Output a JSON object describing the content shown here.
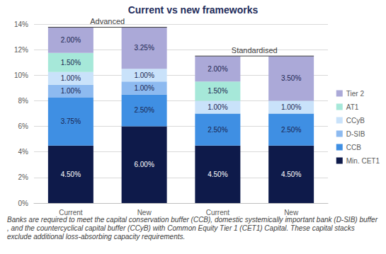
{
  "chart_data": {
    "type": "bar",
    "title": "Current vs new frameworks",
    "categories": [
      "Current",
      "New",
      "Current",
      "New"
    ],
    "groups": [
      {
        "label": "Advanced",
        "span": 2
      },
      {
        "label": "Standardised",
        "span": 2
      }
    ],
    "stacked": true,
    "data_labels": true,
    "grid": true,
    "legend": "right",
    "ylim": [
      0,
      14
    ],
    "yticks": [
      {
        "value": 0,
        "label": "0%"
      },
      {
        "value": 2,
        "label": "2%"
      },
      {
        "value": 4,
        "label": "4%"
      },
      {
        "value": 6,
        "label": "6%"
      },
      {
        "value": 8,
        "label": "8%"
      },
      {
        "value": 10,
        "label": "10%"
      },
      {
        "value": 12,
        "label": "12%"
      },
      {
        "value": 14,
        "label": "14%"
      }
    ],
    "series": [
      {
        "name": "Min. CET1",
        "color": "#0e1a4a",
        "values": [
          4.5,
          6,
          4.5,
          4.5
        ],
        "value_labels": [
          "4.50%",
          "6.00%",
          "4.50%",
          "4.50%"
        ]
      },
      {
        "name": "CCB",
        "color": "#3f8fe3",
        "values": [
          3.75,
          2.5,
          2.5,
          2.5
        ],
        "value_labels": [
          "3.75%",
          "2.50%",
          "2.50%",
          "2.50%"
        ]
      },
      {
        "name": "D-SIB",
        "color": "#8dbaf0",
        "values": [
          1,
          1,
          null,
          null
        ],
        "value_labels": [
          "1.00%",
          "1.00%",
          null,
          null
        ]
      },
      {
        "name": "CCyB",
        "color": "#c9e2fa",
        "values": [
          1,
          1,
          1,
          1
        ],
        "value_labels": [
          "1.00%",
          "1.00%",
          "1.00%",
          "1.00%"
        ]
      },
      {
        "name": "AT1",
        "color": "#a6e8d9",
        "values": [
          1.5,
          null,
          1.5,
          null
        ],
        "value_labels": [
          "1.50%",
          null,
          "1.50%",
          null
        ]
      },
      {
        "name": "Tier 2",
        "color": "#aba9d8",
        "values": [
          2,
          3.25,
          2,
          3.5
        ],
        "value_labels": [
          "2.00%",
          "3.25%",
          "2.00%",
          "3.50%"
        ]
      }
    ],
    "note": "Banks are required to meet the capital conservation buffer (CCB), domestic systemically important bank (D-SIB) buffer, and the countercyclical capital buffer (CCyB) with Common Equity Tier 1 (CET1) Capital. These capital stacks exclude additional loss-absorbing capacity requirements."
  }
}
